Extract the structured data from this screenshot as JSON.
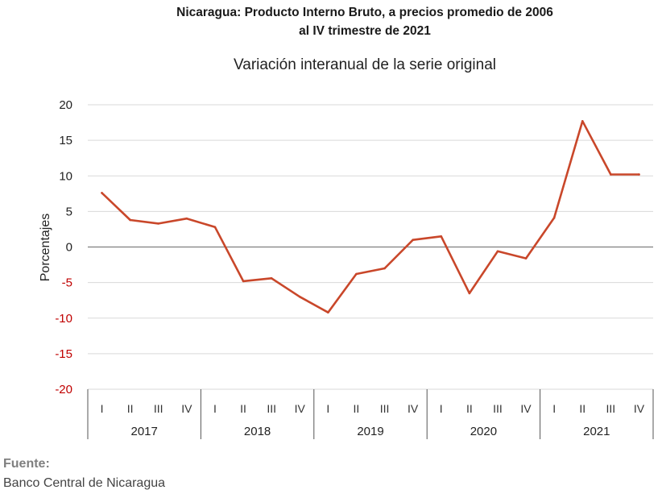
{
  "chart_data": {
    "type": "line",
    "title_line1": "Nicaragua: Producto Interno Bruto, a precios promedio de 2006",
    "title_line2": "al IV trimestre de 2021",
    "subtitle": "Variación interanual de la serie original",
    "ylabel": "Porcentajes",
    "xlabel": "",
    "ylim": [
      -20,
      20
    ],
    "yticks": [
      20,
      15,
      10,
      5,
      0,
      -5,
      -10,
      -15,
      -20
    ],
    "grid": true,
    "legend": "none",
    "quarters": [
      "I",
      "II",
      "III",
      "IV"
    ],
    "years": [
      "2017",
      "2018",
      "2019",
      "2020",
      "2021"
    ],
    "categories": [
      "2017-I",
      "2017-II",
      "2017-III",
      "2017-IV",
      "2018-I",
      "2018-II",
      "2018-III",
      "2018-IV",
      "2019-I",
      "2019-II",
      "2019-III",
      "2019-IV",
      "2020-I",
      "2020-II",
      "2020-III",
      "2020-IV",
      "2021-I",
      "2021-II",
      "2021-III",
      "2021-IV"
    ],
    "series": [
      {
        "values": [
          7.6,
          3.8,
          3.3,
          4.0,
          2.8,
          -4.8,
          -4.4,
          -7.0,
          -9.2,
          -3.8,
          -3.0,
          1.0,
          1.5,
          -6.5,
          -0.6,
          -1.6,
          4.1,
          17.7,
          10.2,
          10.2
        ],
        "color": "#c9472a"
      }
    ],
    "colors": {
      "line": "#c9472a",
      "negative_tick": "#c00000",
      "grid": "#d9d9d9",
      "zero_line": "#7f7f7f"
    }
  },
  "source": {
    "label": "Fuente:",
    "text": "Banco Central de Nicaragua"
  }
}
